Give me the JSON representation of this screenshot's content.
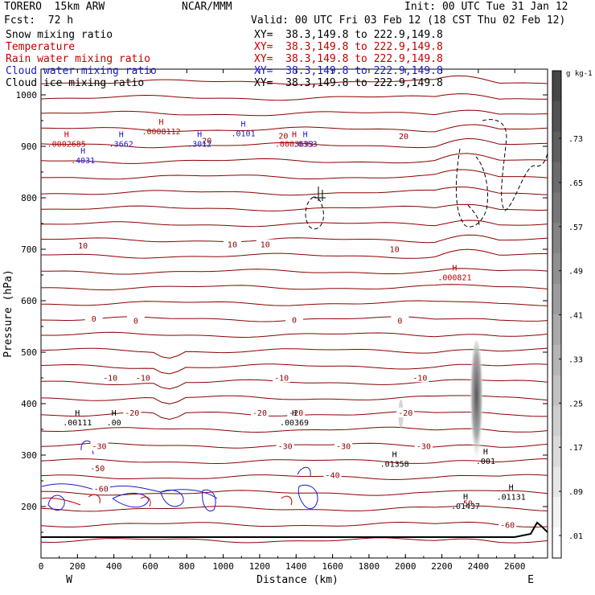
{
  "header": {
    "model": "TORERO  15km ARW",
    "org": "NCAR/MMM",
    "init": "Init: 00 UTC Tue 31 Jan 12",
    "fcst": "Fcst:  72 h",
    "valid": "Valid: 00 UTC Fri 03 Feb 12 (18 CST Thu 02 Feb 12)"
  },
  "legend": [
    {
      "label": "Snow mixing ratio",
      "xy": "XY=  38.3,149.8 to 222.9,149.8",
      "color": "#000000"
    },
    {
      "label": "Temperature",
      "xy": "XY=  38.3,149.8 to 222.9,149.8",
      "color": "#c00000"
    },
    {
      "label": "Rain water mixing ratio",
      "xy": "XY=  38.3,149.8 to 222.9,149.8",
      "color": "#c00000"
    },
    {
      "label": "Cloud water mixing ratio",
      "xy": "XY=  38.3,149.8 to 222.9,149.8",
      "color": "#1a1ad0"
    },
    {
      "label": "Cloud ice mixing ratio",
      "xy": "XY=  38.3,149.8 to 222.9,149.8",
      "color": "#000000"
    }
  ],
  "chart_data": {
    "type": "cross-section",
    "xlabel": "Distance (km)",
    "ylabel": "Pressure (hPa)",
    "xlim": [
      0,
      2780
    ],
    "ylim": [
      1050,
      100
    ],
    "x_ticks": [
      0,
      200,
      400,
      600,
      800,
      1000,
      1200,
      1400,
      1600,
      1800,
      2000,
      2200,
      2400,
      2600
    ],
    "y_ticks": [
      1000,
      900,
      800,
      700,
      600,
      500,
      400,
      300,
      200
    ],
    "y_tick_labels": [
      "1000",
      "900",
      "800",
      "700",
      "600",
      "500",
      "400",
      "300",
      "200"
    ],
    "left_end_label": "W",
    "right_end_label": "E",
    "colorbar": {
      "unit": "g kg-1",
      "ticks": [
        ".01",
        ".09",
        ".17",
        ".25",
        ".33",
        ".41",
        ".49",
        ".57",
        ".65",
        ".73"
      ]
    },
    "temperature_contour_labels": [
      {
        "x": 330,
        "p": 235,
        "text": "-60"
      },
      {
        "x": 310,
        "p": 275,
        "text": "-50"
      },
      {
        "x": 1600,
        "p": 262,
        "text": "-40"
      },
      {
        "x": 320,
        "p": 318,
        "text": "-30"
      },
      {
        "x": 1340,
        "p": 318,
        "text": "-30"
      },
      {
        "x": 1660,
        "p": 318,
        "text": "-30"
      },
      {
        "x": 2100,
        "p": 318,
        "text": "-30"
      },
      {
        "x": 500,
        "p": 383,
        "text": "-20"
      },
      {
        "x": 1200,
        "p": 383,
        "text": "-20"
      },
      {
        "x": 1400,
        "p": 383,
        "text": "-20"
      },
      {
        "x": 2000,
        "p": 383,
        "text": "-20"
      },
      {
        "x": 380,
        "p": 451,
        "text": "-10"
      },
      {
        "x": 560,
        "p": 451,
        "text": "-10"
      },
      {
        "x": 1320,
        "p": 451,
        "text": "-10"
      },
      {
        "x": 2080,
        "p": 451,
        "text": "-10"
      },
      {
        "x": 2560,
        "p": 165,
        "text": "-60"
      },
      {
        "x": 2330,
        "p": 207,
        "text": "-50"
      },
      {
        "x": 290,
        "p": 566,
        "text": "0"
      },
      {
        "x": 520,
        "p": 562,
        "text": "0"
      },
      {
        "x": 1390,
        "p": 563,
        "text": "0"
      },
      {
        "x": 1970,
        "p": 562,
        "text": "0"
      },
      {
        "x": 230,
        "p": 708,
        "text": "10"
      },
      {
        "x": 1050,
        "p": 710,
        "text": "10"
      },
      {
        "x": 1230,
        "p": 710,
        "text": "10"
      },
      {
        "x": 1940,
        "p": 701,
        "text": "10"
      },
      {
        "x": 910,
        "p": 912,
        "text": "20"
      },
      {
        "x": 1330,
        "p": 921,
        "text": "20"
      },
      {
        "x": 1990,
        "p": 920,
        "text": "20"
      }
    ],
    "maxima": [
      {
        "x": 200,
        "p": 370,
        "text": ".00111",
        "series": "Snow mixing ratio"
      },
      {
        "x": 400,
        "p": 370,
        "text": ".00",
        "series": "Snow mixing ratio"
      },
      {
        "x": 1390,
        "p": 370,
        "text": ".00369",
        "series": "Snow mixing ratio"
      },
      {
        "x": 1940,
        "p": 290,
        "text": ".01358",
        "series": "Snow mixing ratio"
      },
      {
        "x": 2330,
        "p": 208,
        "text": ".01437",
        "series": "Snow mixing ratio"
      },
      {
        "x": 2580,
        "p": 226,
        "text": ".01131",
        "series": "Snow mixing ratio"
      },
      {
        "x": 2440,
        "p": 295,
        "text": ".001",
        "series": "Cloud ice mixing ratio"
      },
      {
        "x": 2270,
        "p": 652,
        "text": ".000821",
        "series": "Rain water mixing ratio"
      },
      {
        "x": 230,
        "p": 880,
        "text": ".4031",
        "series": "Cloud water mixing ratio"
      },
      {
        "x": 140,
        "p": 912,
        "text": ".0002685",
        "series": "Rain water mixing ratio"
      },
      {
        "x": 440,
        "p": 912,
        "text": ".3662",
        "series": "Cloud water mixing ratio"
      },
      {
        "x": 660,
        "p": 936,
        "text": ".0008112",
        "series": "Rain water mixing ratio"
      },
      {
        "x": 870,
        "p": 912,
        "text": ".3012",
        "series": "Cloud water mixing ratio"
      },
      {
        "x": 1110,
        "p": 932,
        "text": ".0101",
        "series": "Cloud water mixing ratio"
      },
      {
        "x": 1390,
        "p": 912,
        "text": ".0003693",
        "series": "Rain water mixing ratio"
      },
      {
        "x": 1450,
        "p": 912,
        "text": ".0353",
        "series": "Cloud water mixing ratio"
      }
    ]
  }
}
